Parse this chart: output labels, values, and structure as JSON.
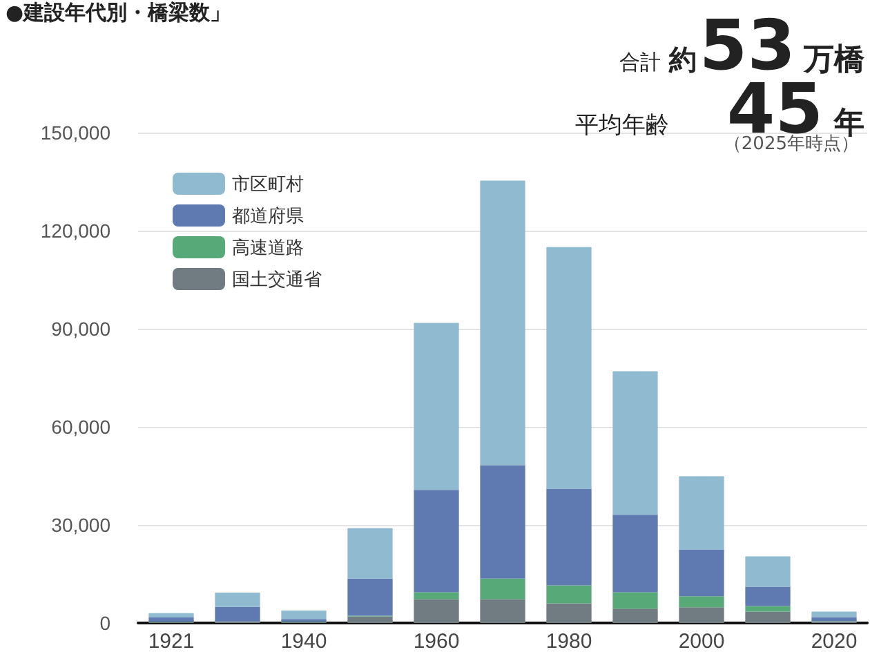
{
  "chart_data": {
    "type": "bar",
    "title": "●建設年代別・橋梁数」",
    "stacked": true,
    "categories": [
      "1921",
      null,
      "1940",
      null,
      "1960",
      null,
      "1980",
      null,
      "2000",
      null,
      "2020"
    ],
    "series": [
      {
        "name": "国土交通省",
        "color": "#717c82",
        "values": [
          300,
          400,
          300,
          2000,
          7300,
          7300,
          6000,
          4400,
          4800,
          3500,
          500
        ]
      },
      {
        "name": "高速道路",
        "color": "#57aa78",
        "values": [
          100,
          100,
          100,
          200,
          2100,
          6300,
          5500,
          5000,
          3400,
          1700,
          100
        ]
      },
      {
        "name": "都道府県",
        "color": "#5f7ab0",
        "values": [
          1300,
          4400,
          800,
          11400,
          31300,
          34700,
          29600,
          23700,
          14300,
          5900,
          1200
        ]
      },
      {
        "name": "市区町村",
        "color": "#8fbad0",
        "values": [
          1300,
          4400,
          2600,
          15400,
          51100,
          87000,
          73900,
          43900,
          22400,
          9300,
          1700
        ]
      }
    ],
    "ylim": [
      0,
      150000
    ],
    "yticks": [
      0,
      {
        "value": 30000,
        "label": "30,000"
      },
      {
        "value": 60000,
        "label": "60,000"
      },
      {
        "value": 90000,
        "label": "90,000"
      },
      {
        "value": 120000,
        "label": "120,000"
      },
      {
        "value": 150000,
        "label": "150,000"
      }
    ],
    "grid": "y",
    "legend": "top left",
    "annotations": [
      "合計",
      "約",
      "53",
      "万橋",
      "平均年齢",
      "45",
      "年",
      "（2025年時点）"
    ]
  }
}
